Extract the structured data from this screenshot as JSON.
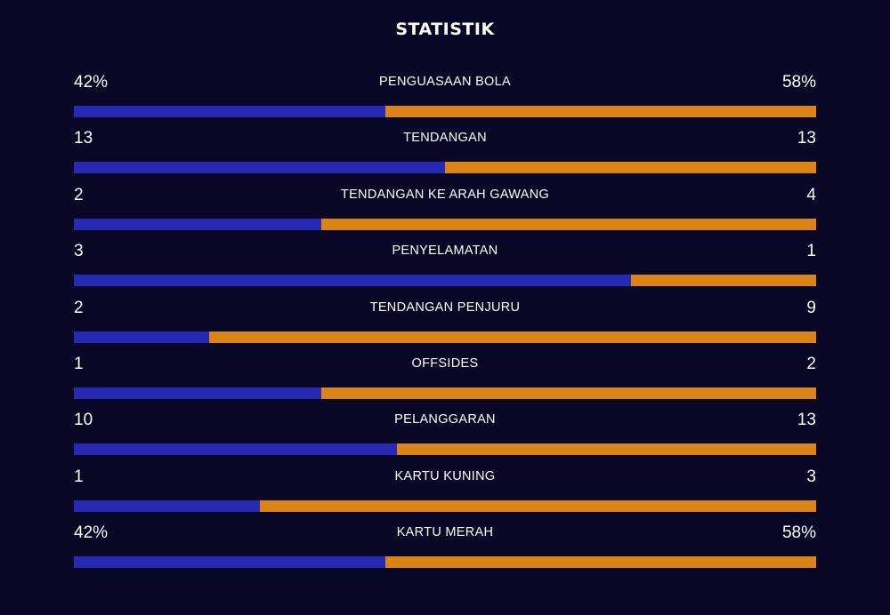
{
  "title": "STATISTIK",
  "colors": {
    "background": "#080726",
    "home_bar": "#2729b2",
    "away_bar": "#d98414"
  },
  "stats": [
    {
      "label": "PENGUASAAN BOLA",
      "home": "42%",
      "away": "58%",
      "home_value": 42,
      "away_value": 58
    },
    {
      "label": "TENDANGAN",
      "home": "13",
      "away": "13",
      "home_value": 13,
      "away_value": 13
    },
    {
      "label": "TENDANGAN KE ARAH GAWANG",
      "home": "2",
      "away": "4",
      "home_value": 2,
      "away_value": 4
    },
    {
      "label": "PENYELAMATAN",
      "home": "3",
      "away": "1",
      "home_value": 3,
      "away_value": 1
    },
    {
      "label": "TENDANGAN PENJURU",
      "home": "2",
      "away": "9",
      "home_value": 2,
      "away_value": 9
    },
    {
      "label": "OFFSIDES",
      "home": "1",
      "away": "2",
      "home_value": 1,
      "away_value": 2
    },
    {
      "label": "PELANGGARAN",
      "home": "10",
      "away": "13",
      "home_value": 10,
      "away_value": 13
    },
    {
      "label": "KARTU KUNING",
      "home": "1",
      "away": "3",
      "home_value": 1,
      "away_value": 3
    },
    {
      "label": "KARTU MERAH",
      "home": "42%",
      "away": "58%",
      "home_value": 42,
      "away_value": 58
    }
  ]
}
